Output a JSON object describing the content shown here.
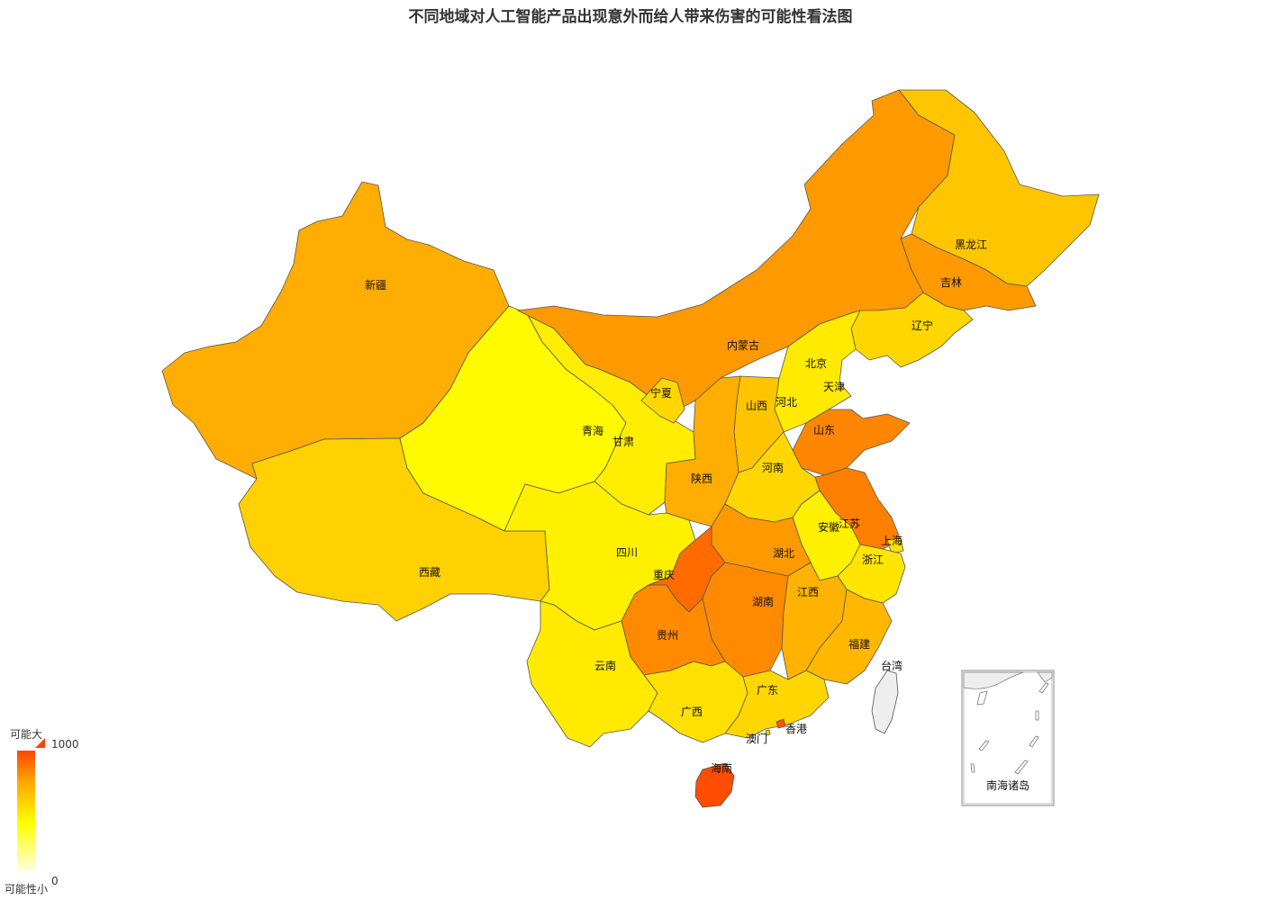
{
  "title": "不同地域对人工智能产品出现意外而给人带来伤害的可能性看法图",
  "visual_map": {
    "min": 0,
    "max": 1000,
    "min_label": "0",
    "max_label": "1000",
    "high_text": "可能大",
    "low_text": "可能性小",
    "colors": [
      "#ffffe0",
      "#ffff00",
      "#ffa500",
      "#ff4500"
    ]
  },
  "inset": {
    "label": "南海诸岛"
  },
  "no_data_color": "#eeeeee",
  "regions": [
    {
      "name": "新疆",
      "value": 720
    },
    {
      "name": "西藏",
      "value": 580
    },
    {
      "name": "青海",
      "value": 420
    },
    {
      "name": "甘肃",
      "value": 470
    },
    {
      "name": "内蒙古",
      "value": 780
    },
    {
      "name": "宁夏",
      "value": 560
    },
    {
      "name": "黑龙江",
      "value": 620
    },
    {
      "name": "吉林",
      "value": 780
    },
    {
      "name": "辽宁",
      "value": 560
    },
    {
      "name": "北京",
      "value": 780
    },
    {
      "name": "天津",
      "value": 880
    },
    {
      "name": "河北",
      "value": 480
    },
    {
      "name": "山西",
      "value": 630
    },
    {
      "name": "山东",
      "value": 830
    },
    {
      "name": "陕西",
      "value": 720
    },
    {
      "name": "河南",
      "value": 560
    },
    {
      "name": "江苏",
      "value": 850
    },
    {
      "name": "上海",
      "value": 520
    },
    {
      "name": "安徽",
      "value": 460
    },
    {
      "name": "浙江",
      "value": 500
    },
    {
      "name": "湖北",
      "value": 780
    },
    {
      "name": "四川",
      "value": 460
    },
    {
      "name": "重庆",
      "value": 900
    },
    {
      "name": "湖南",
      "value": 820
    },
    {
      "name": "江西",
      "value": 700
    },
    {
      "name": "贵州",
      "value": 820
    },
    {
      "name": "福建",
      "value": 680
    },
    {
      "name": "云南",
      "value": 480
    },
    {
      "name": "广西",
      "value": 520
    },
    {
      "name": "广东",
      "value": 560
    },
    {
      "name": "香港",
      "value": 960
    },
    {
      "name": "澳门",
      "value": 600
    },
    {
      "name": "海南",
      "value": 980
    },
    {
      "name": "台湾",
      "value": null
    }
  ]
}
